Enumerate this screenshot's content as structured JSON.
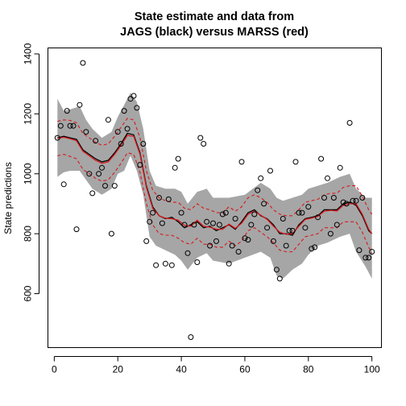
{
  "chart_data": {
    "type": "line",
    "title_line1": "State estimate and data from",
    "title_line2": "JAGS (black) versus MARSS (red)",
    "xlabel": "",
    "ylabel": "State predictions",
    "xlim": [
      -2,
      103
    ],
    "ylim": [
      420,
      1420
    ],
    "x_ticks": [
      "0",
      "20",
      "40",
      "60",
      "80",
      "100"
    ],
    "x_tick_values": [
      0,
      20,
      40,
      60,
      80,
      100
    ],
    "y_ticks": [
      "600",
      "800",
      "1000",
      "1200",
      "1400"
    ],
    "y_tick_values": [
      600,
      800,
      1000,
      1200,
      1400
    ],
    "grid": false,
    "colors": {
      "band": "#a6a6a6",
      "jags_line": "#000000",
      "marss_line": "#d7191c",
      "points": "#000000"
    },
    "series": [
      {
        "role": "jags_upper",
        "x": [
          1,
          3,
          5,
          8,
          10,
          12,
          15,
          18,
          20,
          22,
          24,
          26,
          28,
          30,
          32,
          35,
          38,
          40,
          42,
          45,
          48,
          50,
          55,
          60,
          65,
          68,
          70,
          72,
          75,
          78,
          80,
          83,
          86,
          90,
          93,
          95,
          98,
          100
        ],
        "values": [
          1250,
          1210,
          1215,
          1225,
          1180,
          1150,
          1120,
          1140,
          1190,
          1230,
          1270,
          1240,
          1150,
          1010,
          960,
          950,
          950,
          940,
          900,
          940,
          950,
          920,
          920,
          930,
          970,
          950,
          920,
          910,
          920,
          930,
          950,
          960,
          970,
          990,
          1000,
          950,
          920,
          920
        ]
      },
      {
        "role": "jags_lower",
        "x": [
          1,
          3,
          5,
          8,
          10,
          12,
          15,
          18,
          20,
          22,
          24,
          26,
          28,
          30,
          32,
          35,
          38,
          40,
          42,
          45,
          48,
          50,
          55,
          60,
          65,
          68,
          70,
          72,
          75,
          78,
          80,
          83,
          86,
          90,
          93,
          95,
          98,
          100
        ],
        "values": [
          990,
          1005,
          1010,
          1010,
          980,
          950,
          930,
          950,
          1000,
          1010,
          1060,
          1010,
          930,
          790,
          760,
          745,
          730,
          710,
          680,
          720,
          735,
          710,
          700,
          720,
          740,
          720,
          660,
          650,
          680,
          700,
          730,
          760,
          770,
          790,
          800,
          740,
          690,
          650
        ]
      },
      {
        "name": "JAGS",
        "x": [
          1,
          3,
          5,
          7,
          9,
          11,
          13,
          15,
          17,
          19,
          21,
          23,
          25,
          27,
          29,
          31,
          33,
          35,
          37,
          39,
          41,
          43,
          45,
          47,
          49,
          51,
          53,
          55,
          57,
          59,
          61,
          63,
          65,
          67,
          69,
          71,
          73,
          75,
          77,
          79,
          81,
          83,
          85,
          87,
          89,
          91,
          93,
          95,
          97,
          99,
          100
        ],
        "values": [
          1120,
          1125,
          1120,
          1115,
          1080,
          1065,
          1050,
          1040,
          1045,
          1070,
          1100,
          1135,
          1130,
          1070,
          960,
          890,
          860,
          850,
          855,
          840,
          820,
          830,
          840,
          820,
          825,
          810,
          820,
          830,
          815,
          840,
          870,
          880,
          860,
          850,
          830,
          800,
          800,
          795,
          830,
          850,
          855,
          860,
          880,
          880,
          880,
          900,
          905,
          895,
          860,
          810,
          800
        ]
      },
      {
        "name": "MARSS",
        "x": [
          1,
          3,
          5,
          7,
          9,
          11,
          13,
          15,
          17,
          19,
          21,
          23,
          25,
          27,
          29,
          31,
          33,
          35,
          37,
          39,
          41,
          43,
          45,
          47,
          49,
          51,
          53,
          55,
          57,
          59,
          61,
          63,
          65,
          67,
          69,
          71,
          73,
          75,
          77,
          79,
          81,
          83,
          85,
          87,
          89,
          91,
          93,
          95,
          97,
          99,
          100
        ],
        "values": [
          1118,
          1122,
          1117,
          1110,
          1075,
          1060,
          1045,
          1035,
          1040,
          1065,
          1095,
          1128,
          1125,
          1065,
          955,
          885,
          860,
          852,
          850,
          845,
          828,
          825,
          845,
          825,
          822,
          815,
          815,
          832,
          818,
          835,
          865,
          875,
          862,
          848,
          825,
          805,
          798,
          800,
          825,
          848,
          852,
          858,
          875,
          878,
          876,
          895,
          900,
          900,
          865,
          815,
          800
        ]
      },
      {
        "role": "marss_upper",
        "x": [
          1,
          3,
          5,
          7,
          9,
          11,
          13,
          15,
          17,
          19,
          21,
          23,
          25,
          27,
          29,
          31,
          33,
          35,
          37,
          39,
          41,
          43,
          45,
          47,
          49,
          51,
          53,
          55,
          57,
          59,
          61,
          63,
          65,
          67,
          69,
          71,
          73,
          75,
          77,
          79,
          81,
          83,
          85,
          87,
          89,
          91,
          93,
          95,
          97,
          99,
          100
        ],
        "values": [
          1175,
          1180,
          1178,
          1170,
          1135,
          1120,
          1105,
          1095,
          1100,
          1125,
          1155,
          1185,
          1180,
          1120,
          1010,
          945,
          920,
          910,
          905,
          905,
          885,
          880,
          900,
          885,
          880,
          870,
          870,
          890,
          875,
          890,
          920,
          930,
          920,
          905,
          880,
          865,
          860,
          860,
          880,
          905,
          910,
          915,
          930,
          935,
          935,
          955,
          960,
          960,
          925,
          880,
          865
        ]
      },
      {
        "role": "marss_lower",
        "x": [
          1,
          3,
          5,
          7,
          9,
          11,
          13,
          15,
          17,
          19,
          21,
          23,
          25,
          27,
          29,
          31,
          33,
          35,
          37,
          39,
          41,
          43,
          45,
          47,
          49,
          51,
          53,
          55,
          57,
          59,
          61,
          63,
          65,
          67,
          69,
          71,
          73,
          75,
          77,
          79,
          81,
          83,
          85,
          87,
          89,
          91,
          93,
          95,
          97,
          99,
          100
        ],
        "values": [
          1060,
          1065,
          1058,
          1050,
          1015,
          1000,
          985,
          975,
          980,
          1005,
          1035,
          1070,
          1065,
          1005,
          900,
          830,
          800,
          795,
          795,
          785,
          770,
          765,
          785,
          765,
          765,
          755,
          755,
          775,
          760,
          775,
          810,
          820,
          805,
          790,
          770,
          745,
          740,
          740,
          765,
          790,
          795,
          800,
          820,
          820,
          820,
          840,
          840,
          840,
          805,
          755,
          735
        ]
      },
      {
        "name": "data",
        "x": [
          1,
          2,
          3,
          4,
          5,
          6,
          7,
          8,
          9,
          10,
          11,
          12,
          13,
          14,
          15,
          16,
          17,
          18,
          19,
          20,
          21,
          22,
          23,
          24,
          25,
          26,
          27,
          28,
          29,
          30,
          31,
          32,
          33,
          34,
          35,
          36,
          37,
          38,
          39,
          40,
          41,
          42,
          43,
          44,
          45,
          46,
          47,
          48,
          49,
          50,
          51,
          52,
          53,
          54,
          55,
          56,
          57,
          58,
          59,
          60,
          61,
          62,
          63,
          64,
          65,
          66,
          67,
          68,
          69,
          70,
          71,
          72,
          73,
          74,
          75,
          76,
          77,
          78,
          79,
          80,
          81,
          82,
          83,
          84,
          85,
          86,
          87,
          88,
          89,
          90,
          91,
          92,
          93,
          94,
          95,
          96,
          97,
          98,
          99,
          100
        ],
        "values": [
          1120,
          1160,
          965,
          1210,
          1160,
          1160,
          815,
          1230,
          1370,
          1140,
          1000,
          935,
          1110,
          1000,
          1020,
          960,
          1180,
          800,
          960,
          1140,
          1100,
          1210,
          1150,
          1250,
          1260,
          1220,
          1030,
          1100,
          775,
          840,
          870,
          695,
          920,
          835,
          700,
          915,
          695,
          1020,
          1050,
          870,
          830,
          735,
          455,
          830,
          705,
          1120,
          1100,
          840,
          760,
          835,
          775,
          830,
          865,
          870,
          700,
          760,
          850,
          740,
          1040,
          785,
          780,
          830,
          865,
          945,
          985,
          900,
          820,
          1010,
          775,
          680,
          650,
          850,
          760,
          810,
          810,
          1040,
          870,
          870,
          820,
          890,
          750,
          755,
          855,
          1050,
          920,
          985,
          800,
          920,
          830,
          1020,
          905,
          900,
          1170,
          910,
          910,
          745,
          920,
          720,
          720,
          740
        ]
      }
    ]
  }
}
